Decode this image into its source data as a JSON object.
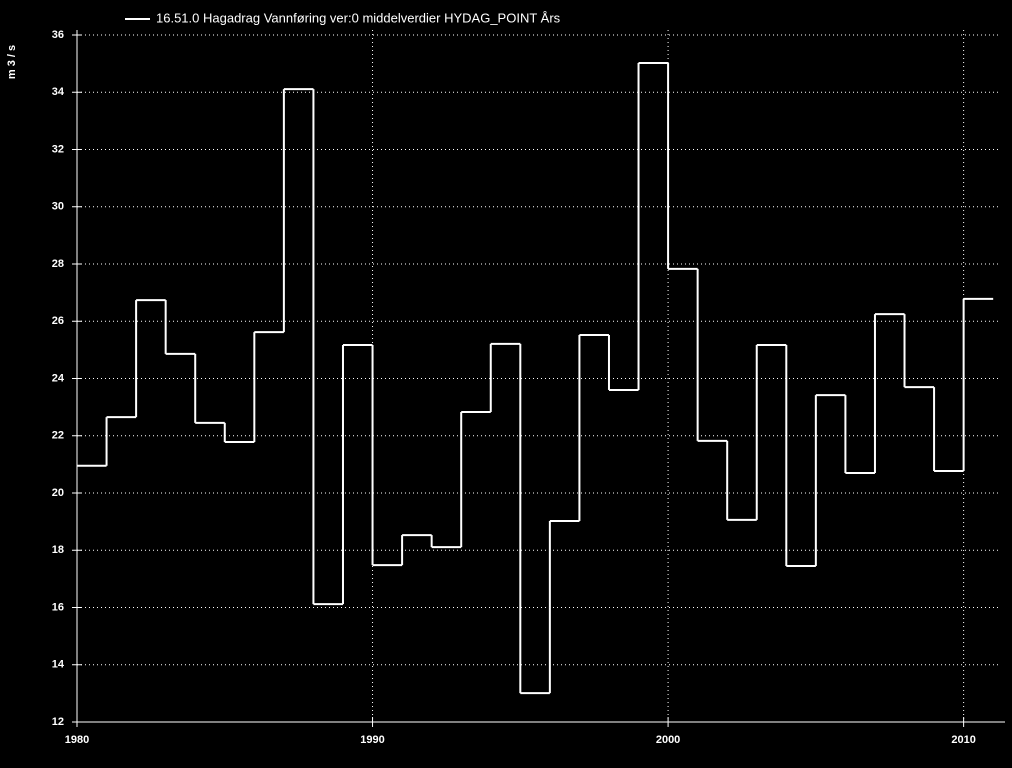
{
  "chart_data": {
    "type": "step",
    "legend": "16.51.0  Hagadrag  Vannføring  ver:0  middelverdier  HYDAG_POINT  Års",
    "y_label": "m 3 / s",
    "x": [
      1980,
      1981,
      1982,
      1983,
      1984,
      1985,
      1986,
      1987,
      1988,
      1989,
      1990,
      1991,
      1992,
      1993,
      1994,
      1995,
      1996,
      1997,
      1998,
      1999,
      2000,
      2001,
      2002,
      2003,
      2004,
      2005,
      2006,
      2007,
      2008,
      2009,
      2010
    ],
    "values": [
      20.95,
      22.65,
      26.74,
      24.86,
      22.45,
      21.78,
      25.62,
      34.11,
      16.12,
      25.17,
      17.48,
      18.53,
      18.11,
      22.83,
      25.21,
      13.01,
      19.02,
      25.52,
      23.6,
      35.02,
      27.83,
      21.82,
      19.06,
      25.17,
      17.45,
      23.42,
      20.7,
      26.25,
      23.7,
      20.77,
      26.78
    ],
    "color": "#ffffff",
    "xlim": [
      1980,
      2011.4
    ],
    "xticks": [
      1980,
      1990,
      2000,
      2010
    ],
    "ylim": [
      12,
      36
    ],
    "yticks": [
      12,
      14,
      16,
      18,
      20,
      22,
      24,
      26,
      28,
      30,
      32,
      34,
      36
    ],
    "grid": true
  }
}
